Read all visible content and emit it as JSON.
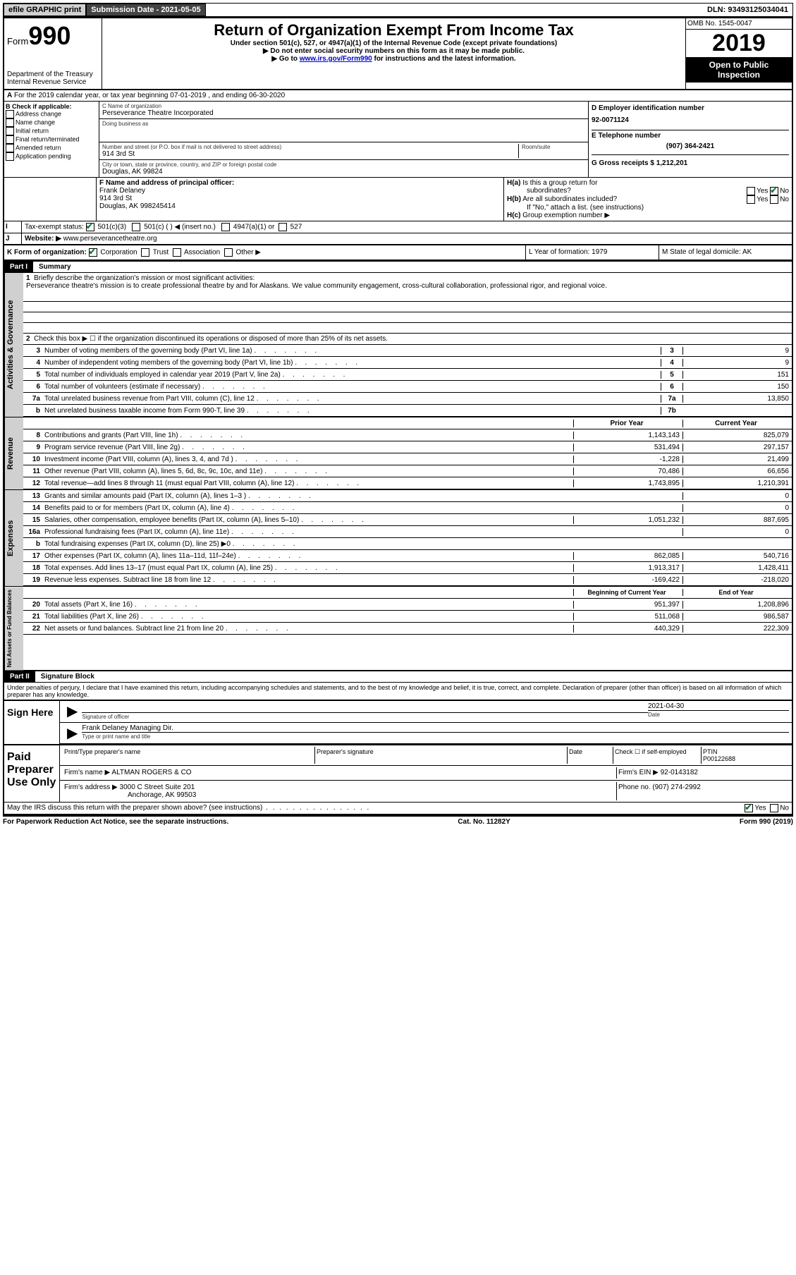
{
  "topbar": {
    "efile": "efile GRAPHIC print",
    "submission_label": "Submission Date - 2021-05-05",
    "dln": "DLN: 93493125034041"
  },
  "header": {
    "form_label": "Form",
    "form_num": "990",
    "dept": "Department of the Treasury",
    "irs": "Internal Revenue Service",
    "title": "Return of Organization Exempt From Income Tax",
    "sub1": "Under section 501(c), 527, or 4947(a)(1) of the Internal Revenue Code (except private foundations)",
    "sub2": "Do not enter social security numbers on this form as it may be made public.",
    "sub3_pre": "Go to ",
    "sub3_link": "www.irs.gov/Form990",
    "sub3_post": " for instructions and the latest information.",
    "omb": "OMB No. 1545-0047",
    "year": "2019",
    "inspection": "Open to Public Inspection"
  },
  "lineA": "For the 2019 calendar year, or tax year beginning 07-01-2019    , and ending 06-30-2020",
  "blockB": {
    "title": "B Check if applicable:",
    "items": [
      "Address change",
      "Name change",
      "Initial return",
      "Final return/terminated",
      "Amended return",
      "Application pending"
    ]
  },
  "blockC": {
    "name_label": "C Name of organization",
    "name": "Perseverance Theatre Incorporated",
    "dba_label": "Doing business as",
    "addr_label": "Number and street (or P.O. box if mail is not delivered to street address)",
    "room_label": "Room/suite",
    "addr": "914 3rd St",
    "city_label": "City or town, state or province, country, and ZIP or foreign postal code",
    "city": "Douglas, AK  99824"
  },
  "blockD": {
    "label": "D Employer identification number",
    "ein": "92-0071124",
    "phone_label": "E Telephone number",
    "phone": "(907) 364-2421",
    "gross_label": "G Gross receipts $ 1,212,201"
  },
  "blockF": {
    "label": "F  Name and address of principal officer:",
    "name": "Frank Delaney",
    "addr1": "914 3rd St",
    "addr2": "Douglas, AK  998245414"
  },
  "blockH": {
    "ha": "Is this a group return for",
    "ha2": "subordinates?",
    "hb": "Are all subordinates included?",
    "hc_note": "If \"No,\" attach a list. (see instructions)",
    "hc": "Group exemption number ▶"
  },
  "lineI": {
    "label": "Tax-exempt status:",
    "items": [
      "501(c)(3)",
      "501(c) (  ) ◀ (insert no.)",
      "4947(a)(1) or",
      "527"
    ]
  },
  "lineJ": {
    "label": "Website: ▶",
    "value": "www.perseverancetheatre.org"
  },
  "lineK": {
    "label": "K Form of organization:",
    "items": [
      "Corporation",
      "Trust",
      "Association",
      "Other ▶"
    ]
  },
  "lineL": {
    "label": "L Year of formation: 1979"
  },
  "lineM": {
    "label": "M State of legal domicile: AK"
  },
  "part1": {
    "header": "Part I",
    "title": "Summary"
  },
  "summary": {
    "l1_label": "Briefly describe the organization's mission or most significant activities:",
    "l1_text": "Perseverance theatre's mission is to create professional theatre by and for Alaskans. We value community engagement, cross-cultural collaboration, professional rigor, and regional voice.",
    "l2": "Check this box ▶ ☐  if the organization discontinued its operations or disposed of more than 25% of its net assets.",
    "lines": [
      {
        "n": "3",
        "t": "Number of voting members of the governing body (Part VI, line 1a)",
        "box": "3",
        "v": "9"
      },
      {
        "n": "4",
        "t": "Number of independent voting members of the governing body (Part VI, line 1b)",
        "box": "4",
        "v": "9"
      },
      {
        "n": "5",
        "t": "Total number of individuals employed in calendar year 2019 (Part V, line 2a)",
        "box": "5",
        "v": "151"
      },
      {
        "n": "6",
        "t": "Total number of volunteers (estimate if necessary)",
        "box": "6",
        "v": "150"
      },
      {
        "n": "7a",
        "t": "Total unrelated business revenue from Part VIII, column (C), line 12",
        "box": "7a",
        "v": "13,850"
      },
      {
        "n": "b",
        "t": "Net unrelated business taxable income from Form 990-T, line 39",
        "box": "7b",
        "v": ""
      }
    ]
  },
  "rev_header": {
    "prior": "Prior Year",
    "current": "Current Year"
  },
  "revenue": [
    {
      "n": "8",
      "t": "Contributions and grants (Part VIII, line 1h)",
      "p": "1,143,143",
      "c": "825,079"
    },
    {
      "n": "9",
      "t": "Program service revenue (Part VIII, line 2g)",
      "p": "531,494",
      "c": "297,157"
    },
    {
      "n": "10",
      "t": "Investment income (Part VIII, column (A), lines 3, 4, and 7d )",
      "p": "-1,228",
      "c": "21,499"
    },
    {
      "n": "11",
      "t": "Other revenue (Part VIII, column (A), lines 5, 6d, 8c, 9c, 10c, and 11e)",
      "p": "70,486",
      "c": "66,656"
    },
    {
      "n": "12",
      "t": "Total revenue—add lines 8 through 11 (must equal Part VIII, column (A), line 12)",
      "p": "1,743,895",
      "c": "1,210,391"
    }
  ],
  "expenses": [
    {
      "n": "13",
      "t": "Grants and similar amounts paid (Part IX, column (A), lines 1–3 )",
      "p": "",
      "c": "0"
    },
    {
      "n": "14",
      "t": "Benefits paid to or for members (Part IX, column (A), line 4)",
      "p": "",
      "c": "0"
    },
    {
      "n": "15",
      "t": "Salaries, other compensation, employee benefits (Part IX, column (A), lines 5–10)",
      "p": "1,051,232",
      "c": "887,695"
    },
    {
      "n": "16a",
      "t": "Professional fundraising fees (Part IX, column (A), line 11e)",
      "p": "",
      "c": "0"
    },
    {
      "n": "b",
      "t": "Total fundraising expenses (Part IX, column (D), line 25) ▶0",
      "p": "gray",
      "c": "gray"
    },
    {
      "n": "17",
      "t": "Other expenses (Part IX, column (A), lines 11a–11d, 11f–24e)",
      "p": "862,085",
      "c": "540,716"
    },
    {
      "n": "18",
      "t": "Total expenses. Add lines 13–17 (must equal Part IX, column (A), line 25)",
      "p": "1,913,317",
      "c": "1,428,411"
    },
    {
      "n": "19",
      "t": "Revenue less expenses. Subtract line 18 from line 12",
      "p": "-169,422",
      "c": "-218,020"
    }
  ],
  "net_header": {
    "begin": "Beginning of Current Year",
    "end": "End of Year"
  },
  "netassets": [
    {
      "n": "20",
      "t": "Total assets (Part X, line 16)",
      "p": "951,397",
      "c": "1,208,896"
    },
    {
      "n": "21",
      "t": "Total liabilities (Part X, line 26)",
      "p": "511,068",
      "c": "986,587"
    },
    {
      "n": "22",
      "t": "Net assets or fund balances. Subtract line 21 from line 20",
      "p": "440,329",
      "c": "222,309"
    }
  ],
  "part2": {
    "header": "Part II",
    "title": "Signature Block"
  },
  "penalties": "Under penalties of perjury, I declare that I have examined this return, including accompanying schedules and statements, and to the best of my knowledge and belief, it is true, correct, and complete. Declaration of preparer (other than officer) is based on all information of which preparer has any knowledge.",
  "sign": {
    "label": "Sign Here",
    "sig_label": "Signature of officer",
    "date": "2021-04-30",
    "date_label": "Date",
    "name": "Frank Delaney Managing Dir.",
    "name_label": "Type or print name and title"
  },
  "paid": {
    "label": "Paid Preparer Use Only",
    "h1": "Print/Type preparer's name",
    "h2": "Preparer's signature",
    "h3": "Date",
    "check_label": "Check ☐ if self-employed",
    "ptin_label": "PTIN",
    "ptin": "P00122688",
    "firm_label": "Firm's name    ▶",
    "firm": "ALTMAN ROGERS & CO",
    "firm_ein_label": "Firm's EIN ▶",
    "firm_ein": "92-0143182",
    "addr_label": "Firm's address ▶",
    "addr1": "3000 C Street Suite 201",
    "addr2": "Anchorage, AK  99503",
    "phone_label": "Phone no.",
    "phone": "(907) 274-2992"
  },
  "discuss": "May the IRS discuss this return with the preparer shown above? (see instructions)",
  "footer": {
    "left": "For Paperwork Reduction Act Notice, see the separate instructions.",
    "center": "Cat. No. 11282Y",
    "right": "Form 990 (2019)"
  },
  "tabs": {
    "gov": "Activities & Governance",
    "rev": "Revenue",
    "exp": "Expenses",
    "net": "Net Assets or Fund Balances"
  }
}
